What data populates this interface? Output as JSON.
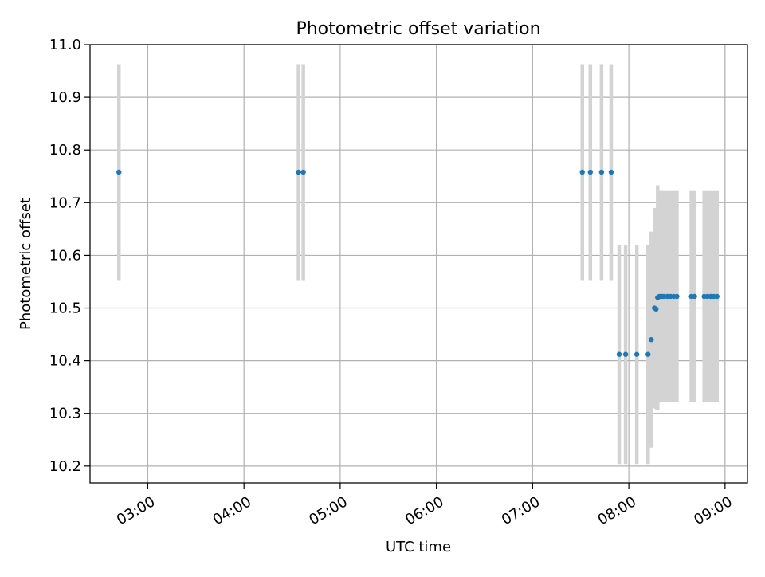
{
  "chart_data": {
    "type": "scatter",
    "title": "Photometric offset variation",
    "xlabel": "UTC time",
    "ylabel": "Photometric offset",
    "x_axis": {
      "range": [
        "02:24",
        "09:14"
      ],
      "ticks": [
        "03:00",
        "04:00",
        "05:00",
        "06:00",
        "07:00",
        "08:00",
        "09:00"
      ]
    },
    "y_axis": {
      "range": [
        10.168,
        11.0
      ],
      "ticks": [
        10.2,
        10.3,
        10.4,
        10.5,
        10.6,
        10.7,
        10.8,
        10.9,
        11.0
      ],
      "tick_labels": [
        "10.2",
        "10.3",
        "10.4",
        "10.5",
        "10.6",
        "10.7",
        "10.8",
        "10.9",
        "11.0"
      ]
    },
    "grid": true,
    "point_color": "#1f77b4",
    "errorbar_color": "#d3d3d3",
    "points": [
      {
        "time": "02:42",
        "value": 10.758,
        "err": 0.205
      },
      {
        "time": "04:34",
        "value": 10.758,
        "err": 0.205
      },
      {
        "time": "04:37",
        "value": 10.758,
        "err": 0.205
      },
      {
        "time": "07:31",
        "value": 10.758,
        "err": 0.205
      },
      {
        "time": "07:36",
        "value": 10.758,
        "err": 0.205
      },
      {
        "time": "07:43",
        "value": 10.758,
        "err": 0.205
      },
      {
        "time": "07:49",
        "value": 10.758,
        "err": 0.205
      },
      {
        "time": "07:54",
        "value": 10.412,
        "err": 0.208
      },
      {
        "time": "07:58",
        "value": 10.412,
        "err": 0.208
      },
      {
        "time": "08:05",
        "value": 10.412,
        "err": 0.208
      },
      {
        "time": "08:12",
        "value": 10.412,
        "err": 0.208
      },
      {
        "time": "08:14",
        "value": 10.44,
        "err": 0.205
      },
      {
        "time": "08:16",
        "value": 10.5,
        "err": 0.19
      },
      {
        "time": "08:17",
        "value": 10.498,
        "err": 0.19
      },
      {
        "time": "08:18",
        "value": 10.52,
        "err": 0.213
      },
      {
        "time": "08:19",
        "value": 10.522,
        "err": 0.2
      },
      {
        "time": "08:20",
        "value": 10.522,
        "err": 0.2
      },
      {
        "time": "08:21",
        "value": 10.522,
        "err": 0.2
      },
      {
        "time": "08:22",
        "value": 10.522,
        "err": 0.2
      },
      {
        "time": "08:24",
        "value": 10.522,
        "err": 0.2
      },
      {
        "time": "08:26",
        "value": 10.522,
        "err": 0.2
      },
      {
        "time": "08:28",
        "value": 10.522,
        "err": 0.2
      },
      {
        "time": "08:30",
        "value": 10.522,
        "err": 0.2
      },
      {
        "time": "08:39",
        "value": 10.522,
        "err": 0.2
      },
      {
        "time": "08:41",
        "value": 10.522,
        "err": 0.2
      },
      {
        "time": "08:47",
        "value": 10.522,
        "err": 0.2
      },
      {
        "time": "08:49",
        "value": 10.522,
        "err": 0.2
      },
      {
        "time": "08:51",
        "value": 10.522,
        "err": 0.2
      },
      {
        "time": "08:53",
        "value": 10.522,
        "err": 0.2
      },
      {
        "time": "08:55",
        "value": 10.522,
        "err": 0.2
      }
    ]
  }
}
